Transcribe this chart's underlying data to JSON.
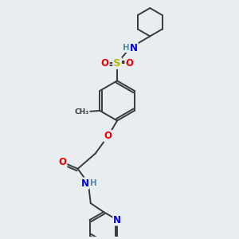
{
  "bg_color": "#e8edf0",
  "atom_colors": {
    "C": "#3a3a3a",
    "N": "#0000ee",
    "O": "#ee0000",
    "S": "#bbbb00",
    "H": "#5588aa"
  },
  "bond_color": "#3a3a3a",
  "bond_lw": 1.4,
  "font_size": 8.5,
  "figsize": [
    3.0,
    3.0
  ],
  "dpi": 100
}
